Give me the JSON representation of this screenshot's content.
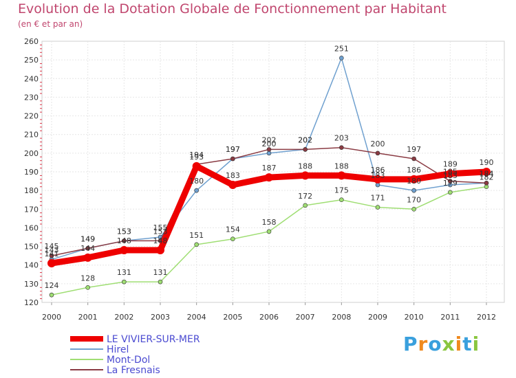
{
  "chart_data": {
    "type": "line",
    "title": "Evolution de la Dotation Globale de Fonctionnement par Habitant",
    "subtitle": "(en € et par an)",
    "xlabel": "",
    "ylabel": "",
    "ylim": [
      120,
      260
    ],
    "yticks": [
      120,
      130,
      140,
      150,
      160,
      170,
      180,
      190,
      200,
      210,
      220,
      230,
      240,
      250,
      260
    ],
    "categories": [
      "2000",
      "2001",
      "2002",
      "2003",
      "2004",
      "2005",
      "2006",
      "2007",
      "2008",
      "2009",
      "2010",
      "2011",
      "2012"
    ],
    "series": [
      {
        "name": "LE VIVIER-SUR-MER",
        "color": "#ee0000",
        "values": [
          141,
          144,
          148,
          148,
          193,
          183,
          187,
          188,
          188,
          186,
          186,
          189,
          190
        ]
      },
      {
        "name": "Hirel",
        "color": "#6fa0cf",
        "values": [
          143,
          149,
          153,
          155,
          180,
          197,
          200,
          202,
          251,
          183,
          180,
          183,
          184
        ]
      },
      {
        "name": "Mont-Dol",
        "color": "#9fde73",
        "values": [
          124,
          128,
          131,
          131,
          151,
          154,
          158,
          172,
          175,
          171,
          170,
          179,
          182
        ]
      },
      {
        "name": "La Fresnais",
        "color": "#8a3b43",
        "values": [
          145,
          149,
          153,
          153,
          194,
          197,
          202,
          202,
          203,
          200,
          197,
          185,
          184
        ]
      }
    ],
    "legend": "bottom-left"
  },
  "branding": {
    "logo_text": "Proxiti",
    "colors": [
      "#3aa0dd",
      "#f08a1e",
      "#3aa0dd",
      "#8ac63f",
      "#f08a1e",
      "#3aa0dd",
      "#8ac63f"
    ]
  }
}
